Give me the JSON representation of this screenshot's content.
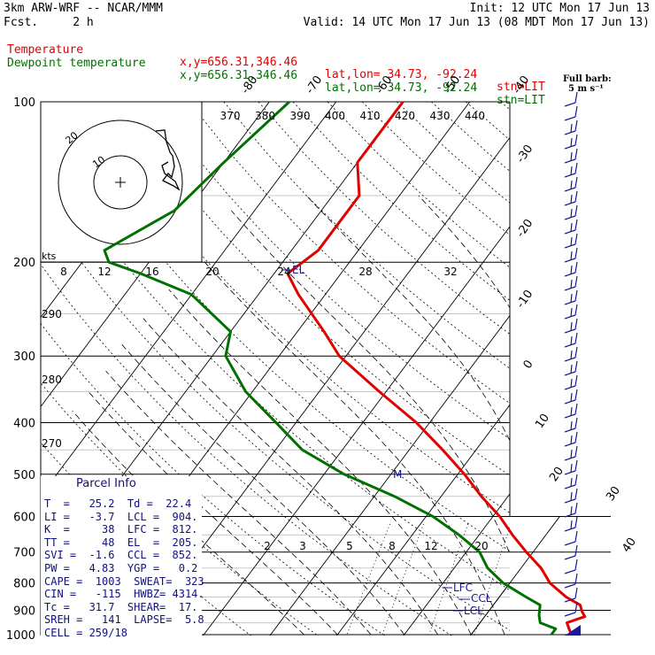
{
  "header": {
    "model": "3km ARW-WRF -- NCAR/MMM",
    "forecast": "Fcst.     2 h",
    "init": "Init: 12 UTC Mon 17 Jun 13",
    "valid": "Valid: 14 UTC Mon 17 Jun 13 (08 MDT Mon 17 Jun 13)",
    "temp_label": "Temperature",
    "dewpt_label": "Dewpoint temperature",
    "xy": "x,y=656.31,346.46",
    "latlon": "lat,lon= 34.73, -92.24",
    "stn": "stn=LIT"
  },
  "barb_legend": {
    "line1": "Full barb:",
    "line2": "5 m s⁻¹"
  },
  "colors": {
    "temperature": "#e00000",
    "dewpoint": "#007000",
    "barbs": "#1818a0",
    "parcel_text": "#101080"
  },
  "chart_data": {
    "type": "skew-t",
    "pressure_levels": [
      "100",
      "200",
      "300",
      "400",
      "500",
      "600",
      "700",
      "800",
      "900",
      "1000"
    ],
    "isotherm_labels": [
      "-80",
      "-70",
      "-60",
      "-50",
      "-40",
      "-30",
      "-20",
      "-10",
      "0",
      "10",
      "20",
      "30",
      "40"
    ],
    "theta_labels": [
      "370",
      "380",
      "390",
      "400",
      "410",
      "420",
      "430",
      "440"
    ],
    "hodograph": {
      "units": "kts",
      "ring_labels": [
        "10",
        "20"
      ],
      "wind_labels": [
        "8",
        "12",
        "16",
        "20",
        "24",
        "28",
        "32"
      ]
    },
    "dry_adiabat_labels": [
      "290",
      "280",
      "270"
    ],
    "mixing_ratio_labels": [
      "2",
      "3",
      "5",
      "8",
      "12",
      "20"
    ],
    "level_markers": [
      "EL",
      "M",
      "LFC",
      "CCL",
      "LCL"
    ],
    "temperature_profile": [
      [
        100,
        -60
      ],
      [
        130,
        -60
      ],
      [
        150,
        -56
      ],
      [
        190,
        -56
      ],
      [
        200,
        -57
      ],
      [
        210,
        -58
      ],
      [
        230,
        -54
      ],
      [
        270,
        -46
      ],
      [
        300,
        -41
      ],
      [
        350,
        -31
      ],
      [
        400,
        -22
      ],
      [
        450,
        -15
      ],
      [
        500,
        -9
      ],
      [
        550,
        -4
      ],
      [
        600,
        1
      ],
      [
        650,
        5
      ],
      [
        700,
        9
      ],
      [
        750,
        13
      ],
      [
        800,
        16
      ],
      [
        850,
        20
      ],
      [
        880,
        23
      ],
      [
        905,
        24
      ],
      [
        925,
        25
      ],
      [
        950,
        23
      ],
      [
        975,
        24
      ],
      [
        1000,
        25
      ]
    ],
    "dewpoint_profile": [
      [
        100,
        -77
      ],
      [
        130,
        -80
      ],
      [
        160,
        -82
      ],
      [
        190,
        -88
      ],
      [
        200,
        -86
      ],
      [
        210,
        -80
      ],
      [
        230,
        -70
      ],
      [
        270,
        -60
      ],
      [
        300,
        -58
      ],
      [
        350,
        -51
      ],
      [
        400,
        -43
      ],
      [
        450,
        -36
      ],
      [
        500,
        -27
      ],
      [
        550,
        -17
      ],
      [
        600,
        -9
      ],
      [
        650,
        -3
      ],
      [
        700,
        2
      ],
      [
        750,
        5
      ],
      [
        800,
        9
      ],
      [
        850,
        14
      ],
      [
        880,
        17
      ],
      [
        920,
        18
      ],
      [
        950,
        19
      ],
      [
        975,
        22
      ],
      [
        1000,
        22
      ]
    ]
  },
  "parcel": {
    "title": "Parcel Info",
    "rows": [
      "T  =   25.2  Td =  22.4",
      "LI =   -3.7  LCL =  904.",
      "K  =     38  LFC =  812.",
      "TT =     48  EL  =  205.",
      "SVI =  -1.6  CCL =  852.",
      "PW =   4.83  YGP =   0.2",
      "CAPE =  1003  SWEAT=  323",
      "CIN =   -115  HWBZ= 4314.",
      "Tc =   31.7  SHEAR=  17.",
      "SREH =   141  LAPSE=  5.8",
      "CELL = 259/18"
    ]
  }
}
